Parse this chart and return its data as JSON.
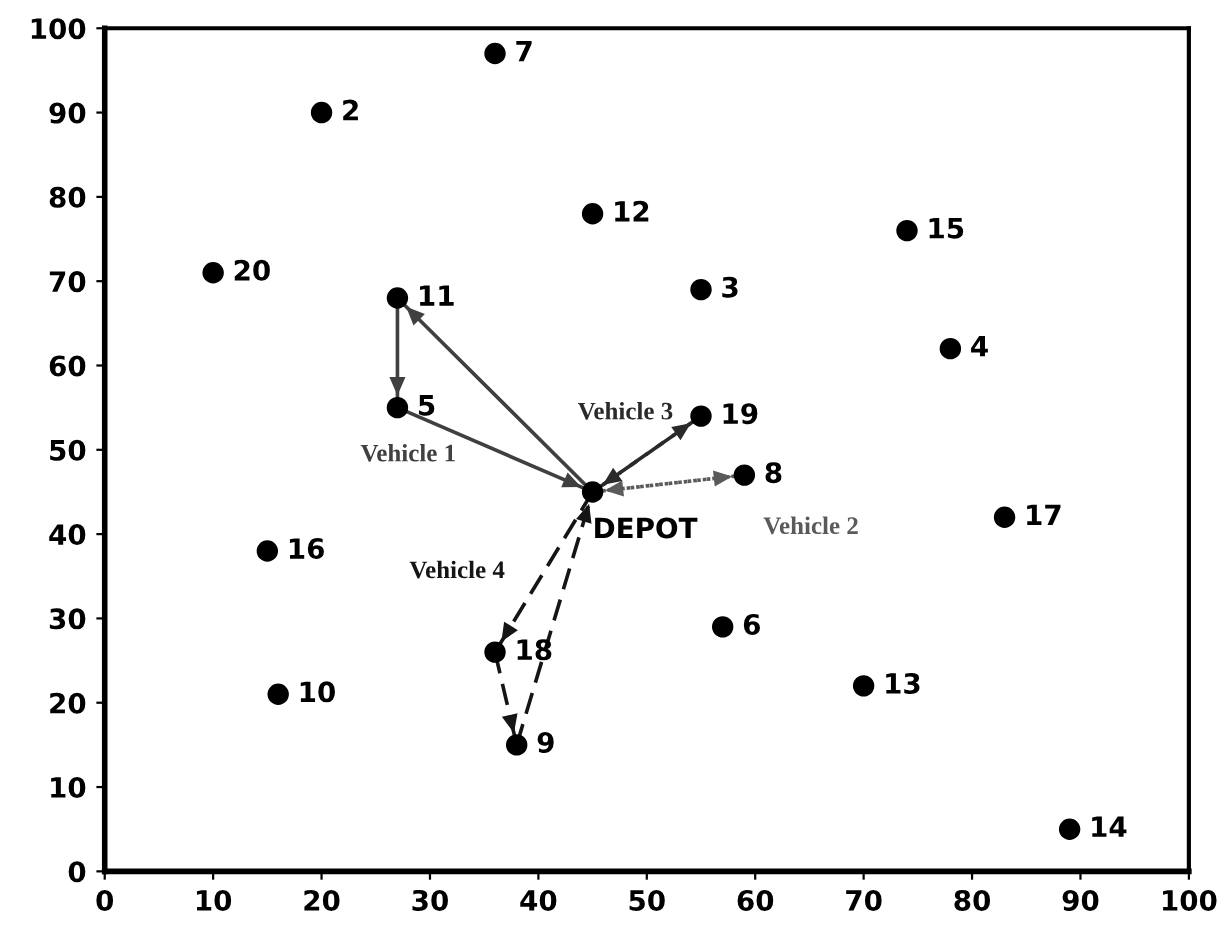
{
  "chart_data": {
    "type": "scatter",
    "series": [
      {
        "color": "#000000",
        "marker": "circle",
        "x": [
          45,
          20,
          55,
          78,
          27,
          57,
          36,
          59,
          38,
          16,
          27,
          45,
          70,
          89,
          74,
          15,
          83,
          36,
          55,
          10
        ],
        "values": [
          45,
          90,
          69,
          62,
          55,
          29,
          97,
          47,
          15,
          21,
          68,
          78,
          22,
          5,
          76,
          38,
          42,
          26,
          54,
          71
        ]
      },
      {
        "type": "line",
        "color": "#404040",
        "marker": "none",
        "line_style": "solid",
        "x": [
          45,
          27
        ],
        "values": [
          45,
          68
        ]
      },
      {
        "type": "line",
        "color": "#404040",
        "marker": "none",
        "line_style": "solid",
        "x": [
          27,
          27
        ],
        "values": [
          68,
          55
        ]
      },
      {
        "type": "line",
        "name": "Vehicle 1",
        "color": "#404040",
        "marker": "none",
        "line_style": "solid",
        "x": [
          27,
          45
        ],
        "values": [
          55,
          45
        ]
      },
      {
        "type": "line",
        "name": "Vehicle 2",
        "color": "#5a5a5a",
        "marker": "none",
        "line_style": "dotted",
        "x": [
          45,
          59
        ],
        "values": [
          45,
          47
        ]
      },
      {
        "type": "line",
        "color": "#5a5a5a",
        "marker": "none",
        "line_style": "dotted",
        "x": [
          59,
          45
        ],
        "values": [
          47,
          45
        ]
      },
      {
        "type": "line",
        "name": "Vehicle 3",
        "color": "#2a2a2a",
        "marker": "none",
        "line_style": "dashed",
        "x": [
          45,
          55
        ],
        "values": [
          45,
          54
        ]
      },
      {
        "type": "line",
        "color": "#2a2a2a",
        "marker": "none",
        "line_style": "dashed",
        "x": [
          55,
          45
        ],
        "values": [
          54,
          45
        ]
      },
      {
        "type": "line",
        "name": "Vehicle 4",
        "color": "#151515",
        "marker": "none",
        "line_style": "dashed",
        "x": [
          45,
          36
        ],
        "values": [
          45,
          26
        ]
      },
      {
        "type": "line",
        "color": "#151515",
        "marker": "none",
        "line_style": "dashed",
        "x": [
          36,
          38
        ],
        "values": [
          26,
          15
        ]
      },
      {
        "type": "line",
        "color": "#151515",
        "marker": "none",
        "line_style": "dashed",
        "x": [
          38,
          45
        ],
        "values": [
          15,
          45
        ]
      }
    ],
    "annotations": [
      {
        "text": "DEPOT",
        "x": 45,
        "y": 45
      },
      {
        "text": "2",
        "x": 20,
        "y": 90
      },
      {
        "text": "3",
        "x": 55,
        "y": 69
      },
      {
        "text": "4",
        "x": 78,
        "y": 62
      },
      {
        "text": "5",
        "x": 27,
        "y": 55
      },
      {
        "text": "6",
        "x": 57,
        "y": 29
      },
      {
        "text": "7",
        "x": 36,
        "y": 97
      },
      {
        "text": "8",
        "x": 59,
        "y": 47
      },
      {
        "text": "9",
        "x": 38,
        "y": 15
      },
      {
        "text": "10",
        "x": 16,
        "y": 21
      },
      {
        "text": "11",
        "x": 27,
        "y": 68
      },
      {
        "text": "12",
        "x": 45,
        "y": 78
      },
      {
        "text": "13",
        "x": 70,
        "y": 22
      },
      {
        "text": "14",
        "x": 89,
        "y": 5
      },
      {
        "text": "15",
        "x": 74,
        "y": 76
      },
      {
        "text": "16",
        "x": 15,
        "y": 38
      },
      {
        "text": "17",
        "x": 83,
        "y": 42
      },
      {
        "text": "18",
        "x": 36,
        "y": 26
      },
      {
        "text": "19",
        "x": 55,
        "y": 54
      },
      {
        "text": "20",
        "x": 10,
        "y": 71
      }
    ],
    "xlim": [
      0,
      100
    ],
    "ylim": [
      0,
      100
    ],
    "xticks": [
      0,
      10,
      20,
      30,
      40,
      50,
      60,
      70,
      80,
      90,
      100
    ],
    "yticks": [
      0,
      10,
      20,
      30,
      40,
      50,
      60,
      70,
      80,
      90,
      100
    ],
    "grid": false,
    "legend": false
  }
}
